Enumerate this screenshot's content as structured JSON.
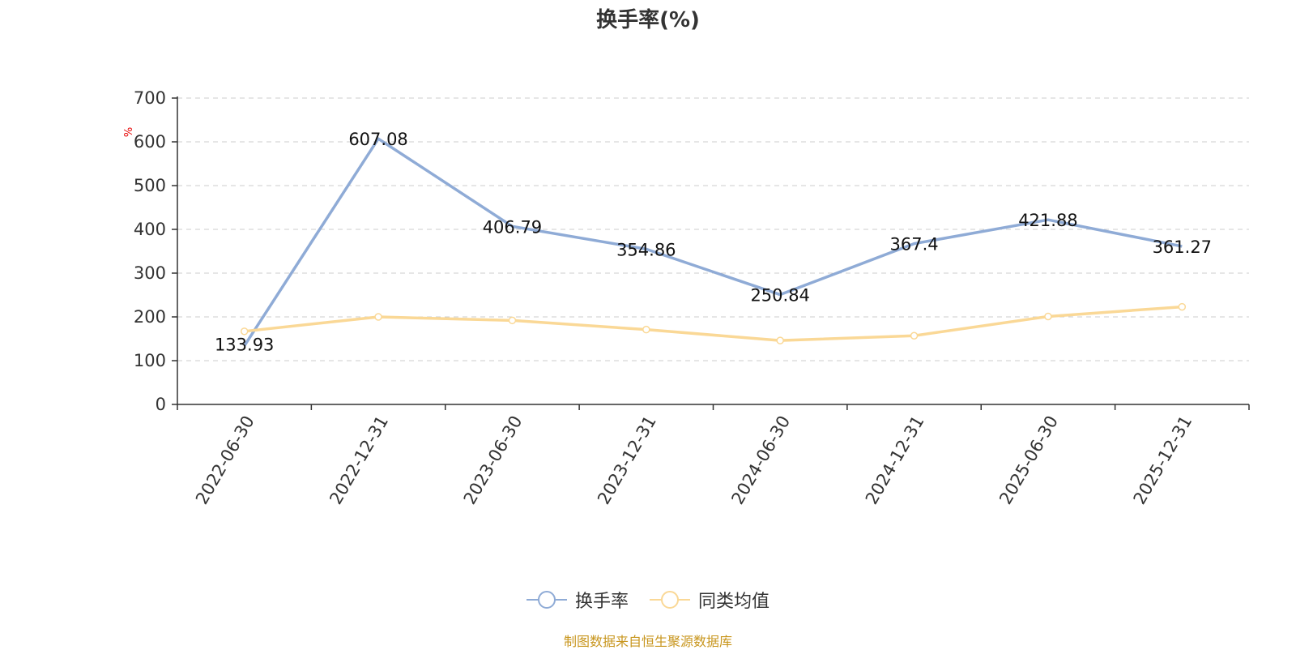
{
  "colors": {
    "series_1": "#8fabd6",
    "series_2": "#fad896",
    "grid": "#cccccc",
    "axis": "#333333",
    "unit": "#e60000",
    "source": "#c8961e"
  },
  "source_text": "制图数据来自恒生聚源数据库",
  "chart_data": {
    "type": "line",
    "title": "换手率(%)",
    "ylabel": "%",
    "xlabel": "",
    "ylim": [
      0,
      700
    ],
    "yticks": [
      0,
      100,
      200,
      300,
      400,
      500,
      600,
      700
    ],
    "grid": true,
    "legend_position": "bottom-center",
    "categories": [
      "2022-06-30",
      "2022-12-31",
      "2023-06-30",
      "2023-12-31",
      "2024-06-30",
      "2024-12-31",
      "2025-06-30",
      "2025-12-31"
    ],
    "series": [
      {
        "name": "换手率",
        "values": [
          133.93,
          607.08,
          406.79,
          354.86,
          250.84,
          367.4,
          421.88,
          361.27
        ],
        "labels": [
          "133.93",
          "607.08",
          "406.79",
          "354.86",
          "250.84",
          "367.4",
          "421.88",
          "361.27"
        ]
      },
      {
        "name": "同类均值",
        "values": [
          167,
          200,
          192,
          171,
          146,
          157,
          201,
          223
        ]
      }
    ]
  }
}
